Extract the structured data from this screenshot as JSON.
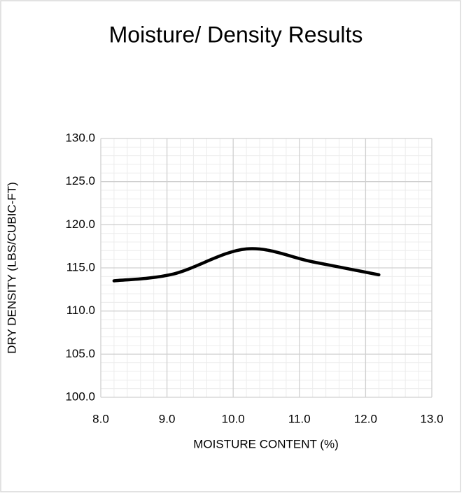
{
  "chart_data": {
    "type": "line",
    "title": "Moisture/ Density Results",
    "x_label": "MOISTURE CONTENT (%)",
    "y_label": "DRY DENSITY (LBS/CUBIC-FT)",
    "x": [
      8.2,
      9.1,
      10.2,
      11.2,
      12.2
    ],
    "series": [
      {
        "name": "Dry Density",
        "color": "#000000",
        "values": [
          113.5,
          114.3,
          117.2,
          115.7,
          114.2
        ]
      }
    ],
    "smooth": true,
    "xlim": [
      8,
      13
    ],
    "xticks": [
      {
        "value": 8,
        "label": "8.0"
      },
      {
        "value": 9,
        "label": "9.0"
      },
      {
        "value": 10,
        "label": "10.0"
      },
      {
        "value": 11,
        "label": "11.0"
      },
      {
        "value": 12,
        "label": "12.0"
      },
      {
        "value": 13,
        "label": "13.0"
      }
    ],
    "ylim": [
      100,
      130
    ],
    "yticks": [
      {
        "value": 100,
        "label": "100.0"
      },
      {
        "value": 105,
        "label": "105.0"
      },
      {
        "value": 110,
        "label": "110.0"
      },
      {
        "value": 115,
        "label": "115.0"
      },
      {
        "value": 120,
        "label": "120.0"
      },
      {
        "value": 125,
        "label": "125.0"
      },
      {
        "value": 130,
        "label": "130.0"
      }
    ],
    "grid": true,
    "minor_grid": true
  }
}
